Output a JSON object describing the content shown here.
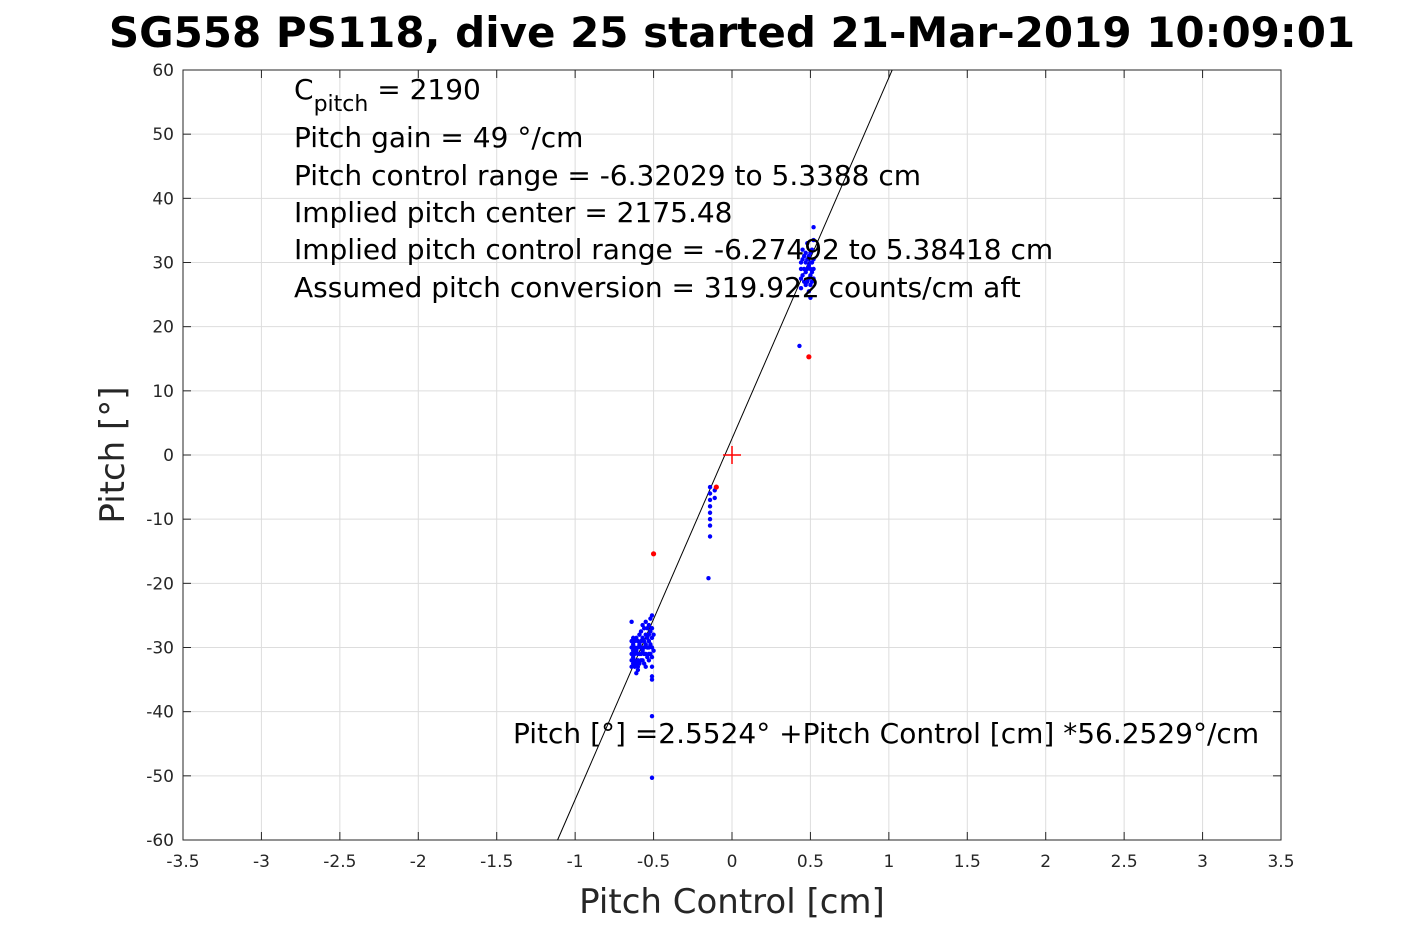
{
  "chart_data": {
    "type": "scatter",
    "title": "SG558 PS118, dive 25 started 21-Mar-2019 10:09:01",
    "xlabel": "Pitch Control [cm]",
    "ylabel": "Pitch [°]",
    "xlim": [
      -3.5,
      3.5
    ],
    "ylim": [
      -60,
      60
    ],
    "xticks": [
      -3.5,
      -3,
      -2.5,
      -2,
      -1.5,
      -1,
      -0.5,
      0,
      0.5,
      1,
      1.5,
      2,
      2.5,
      3,
      3.5
    ],
    "xtick_labels": [
      "-3.5",
      "-3",
      "-2.5",
      "-2",
      "-1.5",
      "-1",
      "-0.5",
      "0",
      "0.5",
      "1",
      "1.5",
      "2",
      "2.5",
      "3",
      "3.5"
    ],
    "yticks": [
      -60,
      -50,
      -40,
      -30,
      -20,
      -10,
      0,
      10,
      20,
      30,
      40,
      50,
      60
    ],
    "ytick_labels": [
      "-60",
      "-50",
      "-40",
      "-30",
      "-20",
      "-10",
      "0",
      "10",
      "20",
      "30",
      "40",
      "50",
      "60"
    ],
    "grid": true,
    "colors": {
      "good": "#0000ff",
      "bad": "#ff0000",
      "fit": "#000000",
      "center": "#ff0000",
      "grid": "#dddddd"
    },
    "series": [
      {
        "color": "#0000ff",
        "points": [
          [
            -0.64,
            -26
          ],
          [
            -0.64,
            -29
          ],
          [
            -0.64,
            -30
          ],
          [
            -0.64,
            -31
          ],
          [
            -0.64,
            -32
          ],
          [
            -0.64,
            -33
          ],
          [
            -0.63,
            -28.5
          ],
          [
            -0.63,
            -29.5
          ],
          [
            -0.63,
            -30.5
          ],
          [
            -0.63,
            -31.5
          ],
          [
            -0.63,
            -32.5
          ],
          [
            -0.62,
            -29
          ],
          [
            -0.62,
            -30
          ],
          [
            -0.62,
            -31
          ],
          [
            -0.62,
            -32
          ],
          [
            -0.62,
            -33
          ],
          [
            -0.61,
            -28.5
          ],
          [
            -0.61,
            -30.5
          ],
          [
            -0.61,
            -32.5
          ],
          [
            -0.61,
            -34
          ],
          [
            -0.6,
            -29
          ],
          [
            -0.6,
            -30
          ],
          [
            -0.6,
            -31
          ],
          [
            -0.6,
            -32
          ],
          [
            -0.6,
            -33
          ],
          [
            -0.6,
            -33.5
          ],
          [
            -0.59,
            -28
          ],
          [
            -0.59,
            -29.5
          ],
          [
            -0.59,
            -31
          ],
          [
            -0.59,
            -32.5
          ],
          [
            -0.58,
            -27.5
          ],
          [
            -0.58,
            -29
          ],
          [
            -0.58,
            -30
          ],
          [
            -0.58,
            -31
          ],
          [
            -0.58,
            -32
          ],
          [
            -0.57,
            -26.5
          ],
          [
            -0.57,
            -28.5
          ],
          [
            -0.57,
            -30.5
          ],
          [
            -0.57,
            -32
          ],
          [
            -0.56,
            -27
          ],
          [
            -0.56,
            -29
          ],
          [
            -0.56,
            -30
          ],
          [
            -0.56,
            -31
          ],
          [
            -0.56,
            -32.5
          ],
          [
            -0.55,
            -26
          ],
          [
            -0.55,
            -28
          ],
          [
            -0.55,
            -29.5
          ],
          [
            -0.55,
            -31
          ],
          [
            -0.55,
            -33
          ],
          [
            -0.54,
            -27
          ],
          [
            -0.54,
            -28.5
          ],
          [
            -0.54,
            -30
          ],
          [
            -0.54,
            -31.5
          ],
          [
            -0.53,
            -26.5
          ],
          [
            -0.53,
            -28
          ],
          [
            -0.53,
            -29
          ],
          [
            -0.53,
            -30
          ],
          [
            -0.53,
            -31
          ],
          [
            -0.53,
            -32
          ],
          [
            -0.52,
            -25.5
          ],
          [
            -0.52,
            -27.5
          ],
          [
            -0.52,
            -29.5
          ],
          [
            -0.52,
            -31
          ],
          [
            -0.51,
            -25
          ],
          [
            -0.51,
            -27
          ],
          [
            -0.51,
            -28.5
          ],
          [
            -0.51,
            -30
          ],
          [
            -0.51,
            -31.5
          ],
          [
            -0.51,
            -33
          ],
          [
            -0.51,
            -34.5
          ],
          [
            -0.51,
            -35
          ],
          [
            -0.5,
            -28
          ],
          [
            -0.5,
            -30.5
          ],
          [
            -0.51,
            -40.7
          ],
          [
            -0.51,
            -50.3
          ],
          [
            -0.14,
            -5
          ],
          [
            -0.14,
            -6
          ],
          [
            -0.14,
            -7
          ],
          [
            -0.14,
            -8
          ],
          [
            -0.14,
            -9
          ],
          [
            -0.14,
            -10
          ],
          [
            -0.14,
            -11
          ],
          [
            -0.14,
            -12.7
          ],
          [
            -0.15,
            -19.2
          ],
          [
            -0.11,
            -5.5
          ],
          [
            -0.11,
            -6.7
          ],
          [
            0.43,
            17
          ],
          [
            0.44,
            26
          ],
          [
            0.44,
            27.5
          ],
          [
            0.44,
            29
          ],
          [
            0.44,
            30
          ],
          [
            0.45,
            28
          ],
          [
            0.45,
            30.5
          ],
          [
            0.45,
            32
          ],
          [
            0.46,
            27
          ],
          [
            0.46,
            29
          ],
          [
            0.46,
            31
          ],
          [
            0.47,
            26.5
          ],
          [
            0.47,
            28.5
          ],
          [
            0.47,
            30
          ],
          [
            0.47,
            31.5
          ],
          [
            0.48,
            27
          ],
          [
            0.48,
            29
          ],
          [
            0.48,
            30.5
          ],
          [
            0.48,
            33
          ],
          [
            0.49,
            25.5
          ],
          [
            0.49,
            27.5
          ],
          [
            0.49,
            29.5
          ],
          [
            0.49,
            31
          ],
          [
            0.5,
            26.5
          ],
          [
            0.5,
            28
          ],
          [
            0.5,
            29
          ],
          [
            0.5,
            30
          ],
          [
            0.5,
            31.5
          ],
          [
            0.5,
            24.5
          ],
          [
            0.51,
            27
          ],
          [
            0.51,
            28.5
          ],
          [
            0.51,
            30
          ],
          [
            0.51,
            32
          ],
          [
            0.52,
            27.5
          ],
          [
            0.52,
            29
          ],
          [
            0.52,
            30.5
          ],
          [
            0.52,
            33.5
          ],
          [
            0.52,
            35.5
          ]
        ]
      },
      {
        "color": "#ff0000",
        "points": [
          [
            -0.5,
            -15.4
          ],
          [
            -0.1,
            -5
          ],
          [
            0.49,
            15.3
          ]
        ]
      }
    ],
    "fit": {
      "intercept": 2.5524,
      "slope": 56.2529
    },
    "center_marker": [
      0,
      0
    ],
    "annotations": {
      "c_pitch_symbol": "C",
      "c_pitch_subscript": "pitch",
      "c_pitch_value": " = 2190",
      "lines": [
        "Pitch gain = 49 °/cm",
        "Pitch control range = -6.32029 to 5.3388 cm",
        "Implied pitch center = 2175.48",
        "Implied pitch control range = -6.27492 to 5.38418 cm",
        "Assumed pitch conversion = 319.922 counts/cm aft"
      ],
      "fit_equation": "Pitch [°] =2.5524° +Pitch Control [cm] *56.2529°/cm"
    }
  }
}
